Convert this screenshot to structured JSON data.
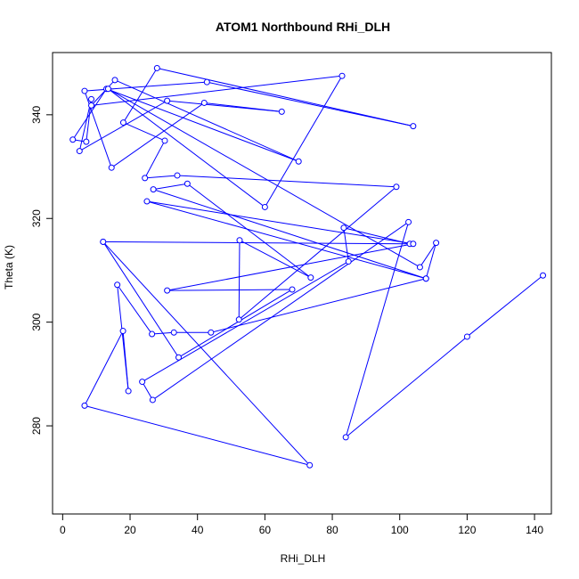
{
  "chart_data": {
    "type": "line",
    "title": "ATOM1 Northbound RHi_DLH",
    "xlabel": "RHi_DLH",
    "ylabel": "Theta (K)",
    "xlim": [
      -3,
      145
    ],
    "ylim": [
      263,
      352
    ],
    "x_ticks": [
      0,
      20,
      40,
      60,
      80,
      100,
      120,
      140
    ],
    "y_ticks": [
      280,
      300,
      320,
      340
    ],
    "grid": false,
    "legend": "none",
    "colors": {
      "series": "#0000ff",
      "axis": "#000000",
      "background": "#ffffff"
    },
    "series": [
      {
        "points": [
          [
            142.5,
            309.0
          ],
          [
            120.0,
            297.2
          ],
          [
            84.0,
            277.8
          ],
          [
            102.6,
            319.3
          ],
          [
            26.7,
            285.0
          ],
          [
            23.6,
            288.5
          ],
          [
            84.8,
            311.7
          ],
          [
            83.4,
            318.2
          ],
          [
            103.0,
            315.1
          ],
          [
            12.0,
            315.5
          ],
          [
            34.4,
            293.2
          ],
          [
            68.1,
            306.3
          ],
          [
            31.0,
            306.1
          ],
          [
            104.0,
            315.1
          ],
          [
            25.0,
            323.3
          ],
          [
            107.8,
            308.4
          ],
          [
            26.9,
            325.6
          ],
          [
            37.0,
            326.7
          ],
          [
            73.6,
            308.6
          ],
          [
            52.5,
            315.8
          ],
          [
            52.3,
            300.5
          ],
          [
            99.0,
            326.1
          ],
          [
            34.0,
            328.3
          ],
          [
            24.4,
            327.8
          ],
          [
            30.3,
            335.0
          ],
          [
            18.0,
            338.5
          ],
          [
            28.0,
            349.0
          ],
          [
            104.0,
            337.8
          ],
          [
            42.8,
            346.3
          ],
          [
            6.5,
            344.6
          ],
          [
            14.5,
            329.8
          ],
          [
            42.0,
            342.3
          ],
          [
            65.0,
            340.6
          ],
          [
            31.0,
            342.7
          ],
          [
            5.0,
            333.0
          ],
          [
            8.5,
            343.0
          ],
          [
            7.0,
            334.8
          ],
          [
            3.0,
            335.2
          ],
          [
            13.0,
            345.0
          ],
          [
            70.0,
            331.0
          ],
          [
            15.5,
            346.7
          ],
          [
            8.5,
            341.8
          ],
          [
            82.9,
            347.5
          ],
          [
            60.0,
            322.2
          ],
          [
            13.5,
            345.0
          ],
          [
            106.0,
            310.6
          ],
          [
            110.8,
            315.3
          ],
          [
            107.8,
            308.4
          ],
          [
            44.0,
            298.0
          ],
          [
            33.0,
            298.0
          ],
          [
            26.5,
            297.7
          ],
          [
            16.2,
            307.2
          ],
          [
            19.5,
            286.7
          ],
          [
            17.9,
            298.3
          ],
          [
            6.5,
            283.9
          ],
          [
            73.3,
            272.4
          ],
          [
            12.0,
            315.5
          ]
        ]
      }
    ]
  }
}
